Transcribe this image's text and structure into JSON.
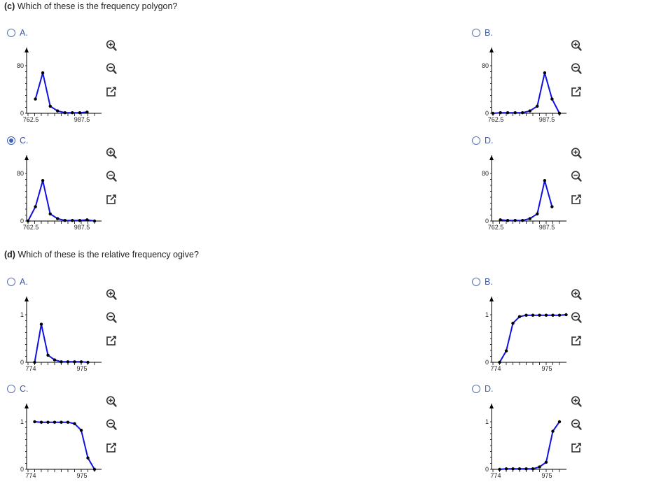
{
  "questions": {
    "c": {
      "letter": "(c)",
      "text": "Which of these is the frequency polygon?"
    },
    "d": {
      "letter": "(d)",
      "text": "Which of these is the relative frequency ogive?"
    }
  },
  "colors": {
    "line": "#1010e0",
    "point": "#000000",
    "accent": "#3a5fbf"
  },
  "icons": [
    "zoom-in-icon",
    "zoom-out-icon",
    "open-new-window-icon"
  ],
  "options_c": [
    {
      "label": "A.",
      "selected": false
    },
    {
      "label": "B.",
      "selected": false
    },
    {
      "label": "C.",
      "selected": true
    },
    {
      "label": "D.",
      "selected": false
    }
  ],
  "options_d": [
    {
      "label": "A.",
      "selected": false
    },
    {
      "label": "B.",
      "selected": false
    },
    {
      "label": "C.",
      "selected": false
    },
    {
      "label": "D.",
      "selected": false
    }
  ],
  "chart_data": [
    {
      "id": "c-A",
      "type": "line",
      "y_tick_top": "80",
      "y_tick_bottom": "0",
      "x_tick_left": "762.5",
      "x_tick_right": "987.5",
      "xlim": [
        762.5,
        987.5
      ],
      "ylim": [
        0,
        80
      ],
      "x": [
        787.5,
        812.5,
        837.5,
        862.5,
        887.5,
        912.5,
        937.5,
        962.5
      ],
      "y": [
        24,
        68,
        12,
        4,
        1,
        1,
        1,
        2
      ]
    },
    {
      "id": "c-B",
      "type": "line",
      "y_tick_top": "80",
      "y_tick_bottom": "0",
      "x_tick_left": "762.5",
      "x_tick_right": "987.5",
      "xlim": [
        762.5,
        987.5
      ],
      "ylim": [
        0,
        80
      ],
      "x": [
        762.5,
        787.5,
        812.5,
        837.5,
        862.5,
        887.5,
        912.5,
        937.5,
        962.5,
        987.5
      ],
      "y": [
        0,
        1,
        1,
        1,
        1,
        4,
        12,
        68,
        24,
        0
      ]
    },
    {
      "id": "c-C",
      "type": "line",
      "y_tick_top": "80",
      "y_tick_bottom": "0",
      "x_tick_left": "762.5",
      "x_tick_right": "987.5",
      "xlim": [
        762.5,
        987.5
      ],
      "ylim": [
        0,
        80
      ],
      "x": [
        762.5,
        787.5,
        812.5,
        837.5,
        862.5,
        887.5,
        912.5,
        937.5,
        962.5,
        987.5
      ],
      "y": [
        0,
        24,
        68,
        12,
        4,
        1,
        1,
        1,
        2,
        0
      ]
    },
    {
      "id": "c-D",
      "type": "line",
      "y_tick_top": "80",
      "y_tick_bottom": "0",
      "x_tick_left": "762.5",
      "x_tick_right": "987.5",
      "xlim": [
        762.5,
        987.5
      ],
      "ylim": [
        0,
        80
      ],
      "x": [
        787.5,
        812.5,
        837.5,
        862.5,
        887.5,
        912.5,
        937.5,
        962.5
      ],
      "y": [
        2,
        1,
        1,
        1,
        4,
        12,
        68,
        24
      ]
    },
    {
      "id": "d-A",
      "type": "line",
      "y_tick_top": "1",
      "y_tick_bottom": "0",
      "x_tick_left": "774",
      "x_tick_right": "975",
      "xlim": [
        750,
        1000
      ],
      "ylim": [
        0,
        1
      ],
      "x": [
        775,
        800,
        825,
        850,
        875,
        900,
        925,
        950,
        975
      ],
      "y": [
        0,
        0.8,
        0.15,
        0.05,
        0.01,
        0.01,
        0.01,
        0.01,
        0
      ]
    },
    {
      "id": "d-B",
      "type": "line",
      "y_tick_top": "1",
      "y_tick_bottom": "0",
      "x_tick_left": "774",
      "x_tick_right": "975",
      "xlim": [
        750,
        1000
      ],
      "ylim": [
        0,
        1
      ],
      "x": [
        775,
        800,
        825,
        850,
        875,
        900,
        925,
        950,
        975,
        1000,
        1025
      ],
      "y": [
        0,
        0.24,
        0.82,
        0.96,
        0.99,
        0.99,
        0.99,
        0.99,
        0.99,
        0.99,
        1.0
      ]
    },
    {
      "id": "d-C",
      "type": "line",
      "y_tick_top": "1",
      "y_tick_bottom": "0",
      "x_tick_left": "774",
      "x_tick_right": "975",
      "xlim": [
        750,
        1000
      ],
      "ylim": [
        0,
        1
      ],
      "x": [
        775,
        800,
        825,
        850,
        875,
        900,
        925,
        950,
        975,
        1000
      ],
      "y": [
        1.0,
        0.99,
        0.99,
        0.99,
        0.99,
        0.99,
        0.96,
        0.82,
        0.24,
        0
      ]
    },
    {
      "id": "d-D",
      "type": "line",
      "y_tick_top": "1",
      "y_tick_bottom": "0",
      "x_tick_left": "774",
      "x_tick_right": "975",
      "xlim": [
        750,
        1000
      ],
      "ylim": [
        0,
        1
      ],
      "x": [
        775,
        800,
        825,
        850,
        875,
        900,
        925,
        950,
        975,
        1000
      ],
      "y": [
        0,
        0.01,
        0.01,
        0.01,
        0.01,
        0.01,
        0.05,
        0.15,
        0.8,
        1.0
      ]
    }
  ]
}
